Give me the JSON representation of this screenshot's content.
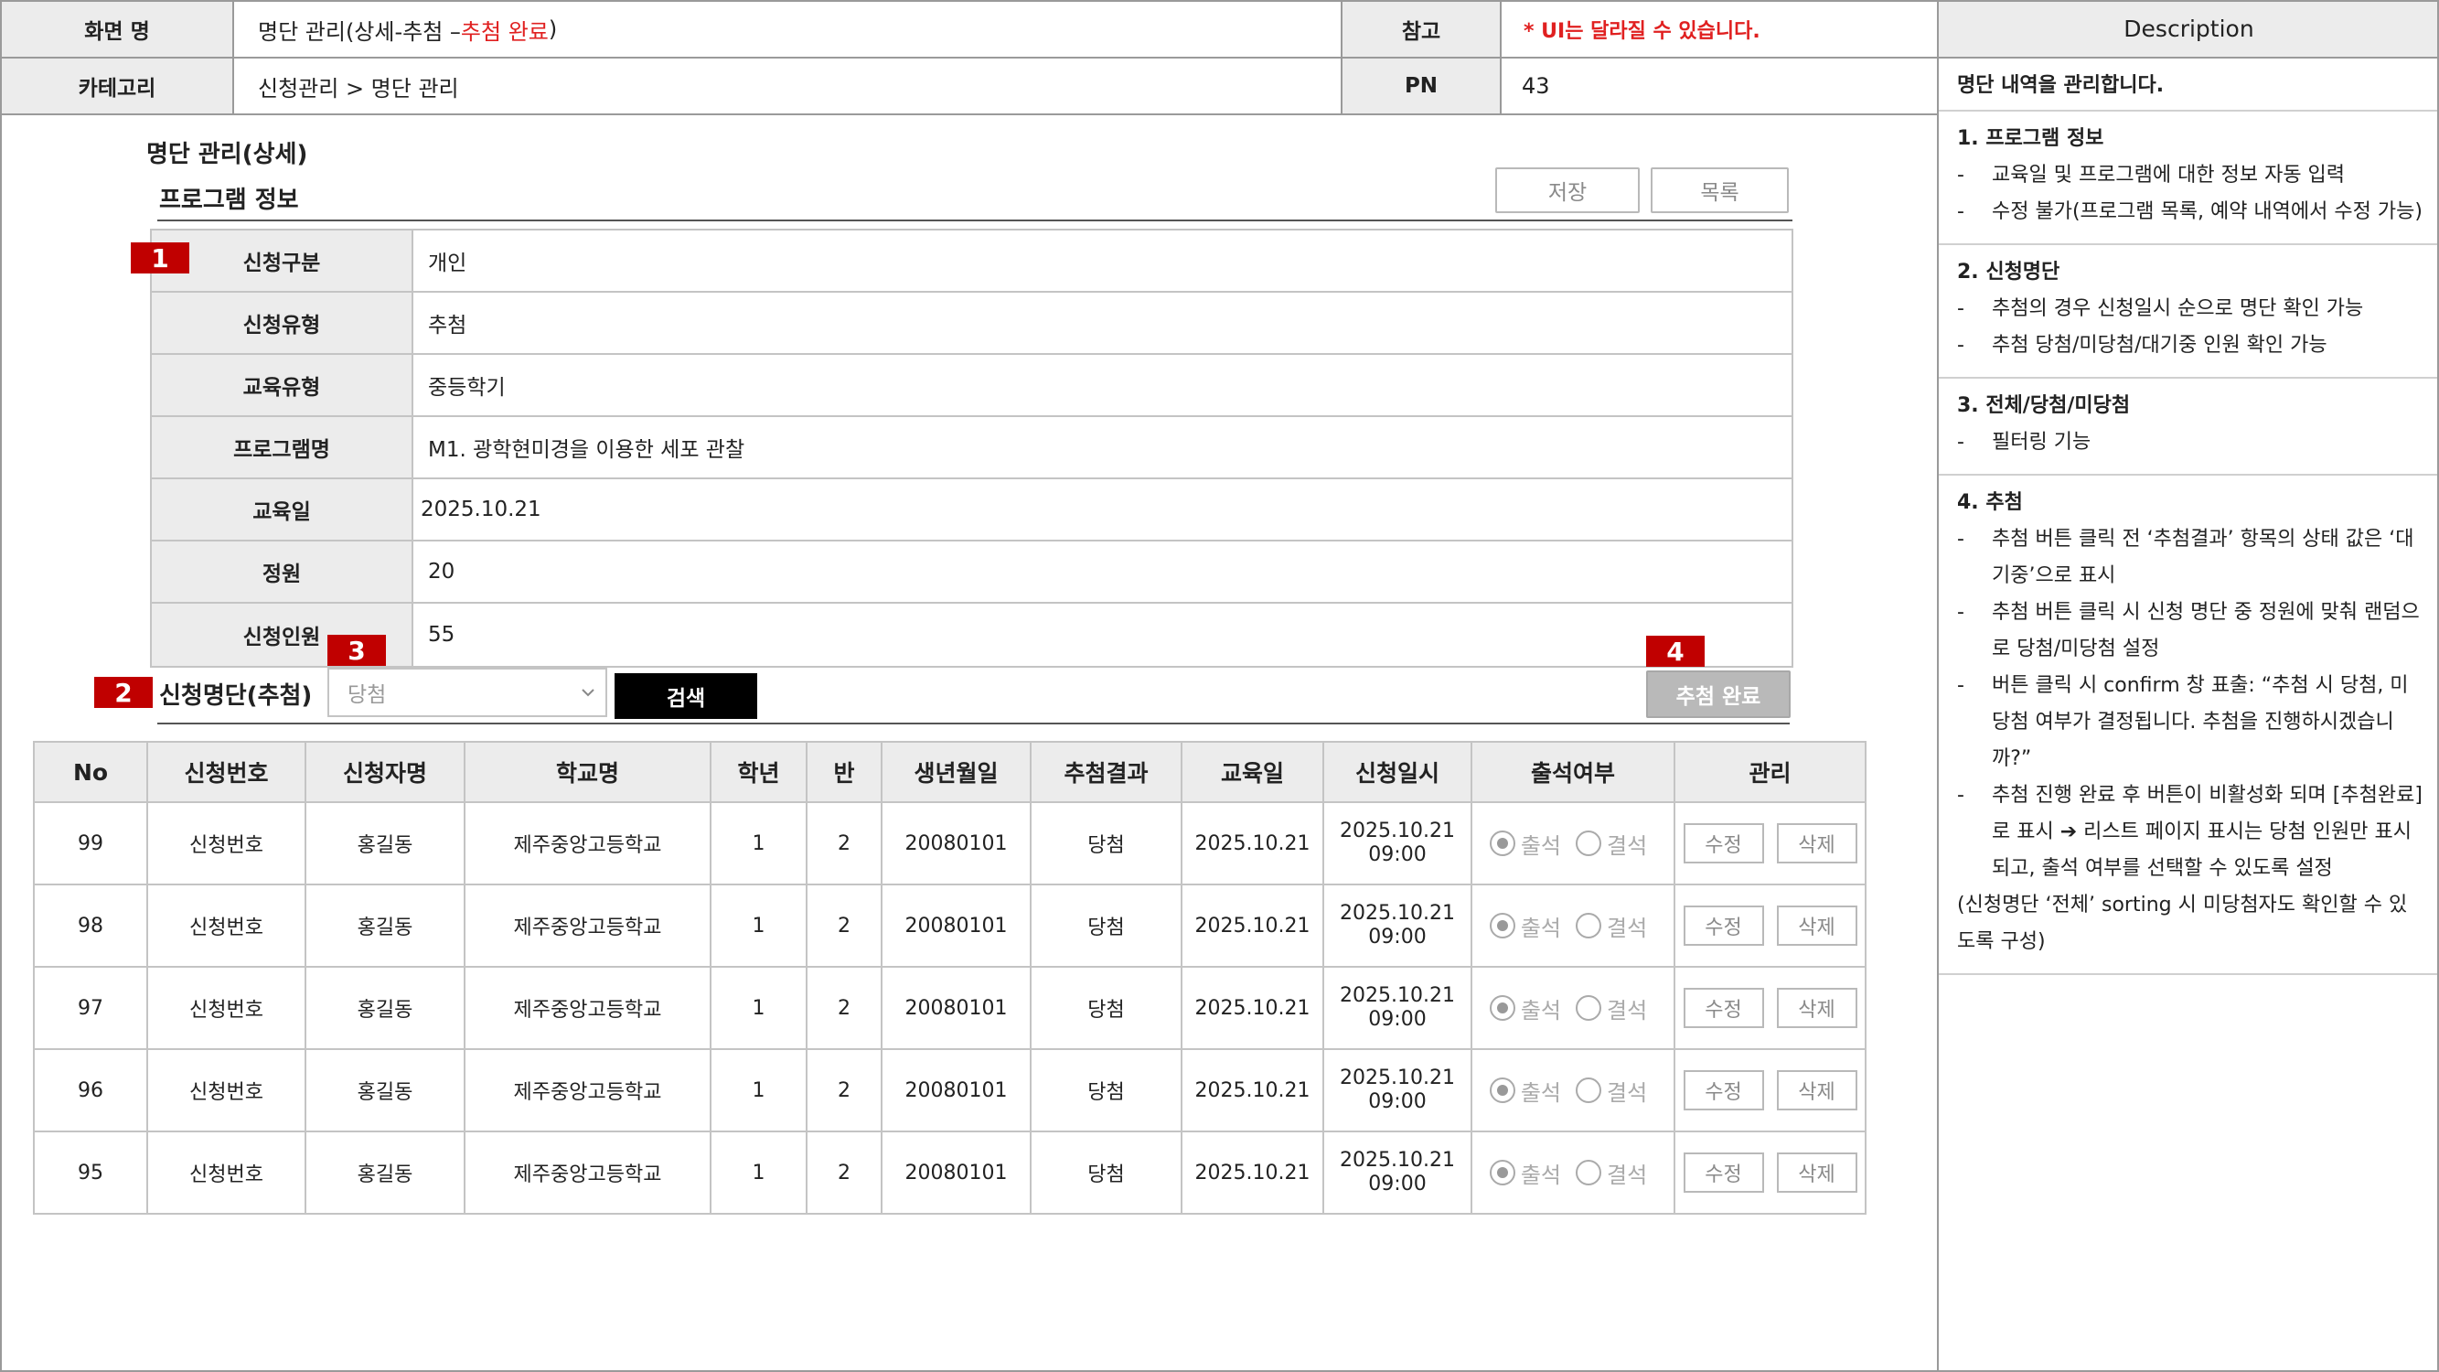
{
  "header": {
    "screen_name_label": "화면 명",
    "screen_name_value_prefix": "명단 관리(상세-추첨 – ",
    "screen_name_value_red": "추첨 완료",
    "screen_name_value_suffix": ")",
    "ref_label": "참고",
    "ref_note": "* UI는 달라질 수 있습니다.",
    "category_label": "카테고리",
    "category_value": "신청관리 > 명단 관리",
    "pn_label": "PN",
    "pn_value": "43"
  },
  "description": {
    "title": "Description",
    "intro": "명단 내역을 관리합니다.",
    "sections": [
      {
        "head": "1.    프로그램 정보",
        "lines": [
          {
            "dash": "-",
            "text": "교육일 및 프로그램에 대한 정보 자동 입력"
          },
          {
            "dash": "-",
            "text": "수정 불가(프로그램 목록, 예약 내역에서 수정 가능)"
          }
        ]
      },
      {
        "head": "2. 신청명단",
        "lines": [
          {
            "dash": "-",
            "text": "추첨의 경우 신청일시 순으로 명단 확인 가능"
          },
          {
            "dash": "-",
            "text": "추첨 당첨/미당첨/대기중 인원 확인 가능"
          }
        ]
      },
      {
        "head": "3. 전체/당첨/미당첨",
        "lines": [
          {
            "dash": "-",
            "text": "필터링 기능"
          }
        ]
      },
      {
        "head": "4. 추첨",
        "lines": [
          {
            "dash": "-",
            "text": "추첨 버튼 클릭 전 ‘추첨결과’ 항목의 상태 값은 ‘대기중’으로 표시"
          },
          {
            "dash": "-",
            "text": "추첨 버튼 클릭 시 신청 명단 중 정원에 맞춰 랜덤으로 당첨/미당첨 설정"
          },
          {
            "dash": "-",
            "text": "버튼 클릭 시 confirm 창 표출: “추첨 시 당첨, 미당첨 여부가 결정됩니다. 추첨을 진행하시겠습니까?”"
          },
          {
            "dash": "-",
            "text": "추첨 진행 완료 후 버튼이 비활성화 되며 [추첨완료]로 표시  ➔ 리스트 페이지 표시는 당첨 인원만 표시되고, 출석 여부를 선택할 수 있도록 설정"
          }
        ],
        "footer": "(신청명단 ‘전체’ sorting 시 미당첨자도 확인할 수 있도록 구성)"
      }
    ]
  },
  "main": {
    "page_title": "명단 관리(상세)",
    "section_title": "프로그램 정보",
    "save_label": "저장",
    "list_label": "목록",
    "badges": [
      "1",
      "2",
      "3",
      "4"
    ],
    "info_rows": [
      {
        "label": "신청구분",
        "value": "개인"
      },
      {
        "label": "신청유형",
        "value": "추첨"
      },
      {
        "label": "교육유형",
        "value": "중등학기"
      },
      {
        "label": "프로그램명",
        "value": "M1. 광학현미경을 이용한 세포 관찰"
      },
      {
        "label": "교육일",
        "value": "2025.10.21"
      },
      {
        "label": "정원",
        "value": "20"
      },
      {
        "label": "신청인원",
        "value": "55"
      }
    ],
    "list_title": "신청명단(추첨)",
    "filter_selected": "당첨",
    "search_label": "검색",
    "draw_complete_label": "추첨 완료"
  },
  "table": {
    "headers": [
      "No",
      "신청번호",
      "신청자명",
      "학교명",
      "학년",
      "반",
      "생년월일",
      "추첨결과",
      "교육일",
      "신청일시",
      "출석여부",
      "관리"
    ],
    "attend_label": "출석",
    "absent_label": "결석",
    "edit_label": "수정",
    "delete_label": "삭제",
    "rows": [
      {
        "no": "99",
        "app_no": "신청번호",
        "name": "홍길동",
        "school": "제주중앙고등학교",
        "grade": "1",
        "class": "2",
        "birth": "20080101",
        "result": "당첨",
        "edu_date": "2025.10.21",
        "app_date": "2025.10.21",
        "app_time": "09:00",
        "attend": "출석"
      },
      {
        "no": "98",
        "app_no": "신청번호",
        "name": "홍길동",
        "school": "제주중앙고등학교",
        "grade": "1",
        "class": "2",
        "birth": "20080101",
        "result": "당첨",
        "edu_date": "2025.10.21",
        "app_date": "2025.10.21",
        "app_time": "09:00",
        "attend": "출석"
      },
      {
        "no": "97",
        "app_no": "신청번호",
        "name": "홍길동",
        "school": "제주중앙고등학교",
        "grade": "1",
        "class": "2",
        "birth": "20080101",
        "result": "당첨",
        "edu_date": "2025.10.21",
        "app_date": "2025.10.21",
        "app_time": "09:00",
        "attend": "출석"
      },
      {
        "no": "96",
        "app_no": "신청번호",
        "name": "홍길동",
        "school": "제주중앙고등학교",
        "grade": "1",
        "class": "2",
        "birth": "20080101",
        "result": "당첨",
        "edu_date": "2025.10.21",
        "app_date": "2025.10.21",
        "app_time": "09:00",
        "attend": "출석"
      },
      {
        "no": "95",
        "app_no": "신청번호",
        "name": "홍길동",
        "school": "제주중앙고등학교",
        "grade": "1",
        "class": "2",
        "birth": "20080101",
        "result": "당첨",
        "edu_date": "2025.10.21",
        "app_date": "2025.10.21",
        "app_time": "09:00",
        "attend": "출석"
      }
    ]
  }
}
